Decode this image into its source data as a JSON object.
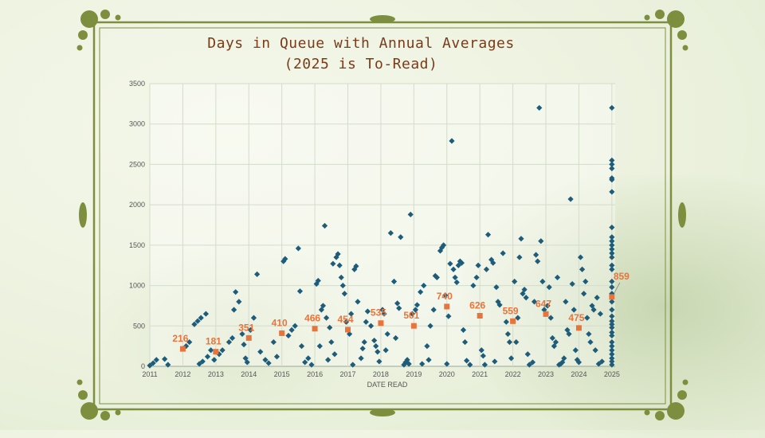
{
  "chart_data": {
    "type": "scatter",
    "title": "Days in Queue with Annual Averages",
    "subtitle": "(2025 is To-Read)",
    "xlabel": "DATE READ",
    "ylabel": "",
    "ylim": [
      0,
      3500
    ],
    "xlim": [
      2011,
      2025.1
    ],
    "yticks": [
      0,
      500,
      1000,
      1500,
      2000,
      2500,
      3000,
      3500
    ],
    "xticks": [
      2011,
      2012,
      2013,
      2014,
      2015,
      2016,
      2017,
      2018,
      2019,
      2020,
      2021,
      2022,
      2023,
      2024,
      2025
    ],
    "grid": true,
    "colors": {
      "points": "#1d5c7a",
      "averages": "#e8743b",
      "frame": "#7d8f3e",
      "title": "#7a3b18"
    },
    "series": [
      {
        "name": "",
        "marker": "diamond",
        "points": [
          [
            2011.0,
            10
          ],
          [
            2011.1,
            40
          ],
          [
            2011.2,
            80
          ],
          [
            2011.45,
            90
          ],
          [
            2011.55,
            20
          ],
          [
            2012.1,
            250
          ],
          [
            2012.2,
            300
          ],
          [
            2012.35,
            520
          ],
          [
            2012.45,
            560
          ],
          [
            2012.55,
            600
          ],
          [
            2012.7,
            650
          ],
          [
            2012.5,
            30
          ],
          [
            2012.6,
            60
          ],
          [
            2012.75,
            120
          ],
          [
            2012.85,
            200
          ],
          [
            2012.95,
            80
          ],
          [
            2013.1,
            150
          ],
          [
            2013.2,
            200
          ],
          [
            2013.4,
            300
          ],
          [
            2013.5,
            350
          ],
          [
            2013.55,
            700
          ],
          [
            2013.6,
            920
          ],
          [
            2013.7,
            800
          ],
          [
            2013.8,
            400
          ],
          [
            2013.85,
            270
          ],
          [
            2013.9,
            100
          ],
          [
            2013.95,
            50
          ],
          [
            2014.05,
            450
          ],
          [
            2014.15,
            600
          ],
          [
            2014.25,
            1140
          ],
          [
            2014.35,
            180
          ],
          [
            2014.5,
            80
          ],
          [
            2014.6,
            40
          ],
          [
            2014.75,
            300
          ],
          [
            2014.85,
            120
          ],
          [
            2015.05,
            1300
          ],
          [
            2015.1,
            1330
          ],
          [
            2015.2,
            380
          ],
          [
            2015.3,
            450
          ],
          [
            2015.4,
            500
          ],
          [
            2015.5,
            1460
          ],
          [
            2015.55,
            930
          ],
          [
            2015.6,
            250
          ],
          [
            2015.7,
            50
          ],
          [
            2015.8,
            100
          ],
          [
            2015.9,
            20
          ],
          [
            2016.05,
            1020
          ],
          [
            2016.1,
            1060
          ],
          [
            2016.2,
            700
          ],
          [
            2016.25,
            750
          ],
          [
            2016.3,
            1740
          ],
          [
            2016.35,
            600
          ],
          [
            2016.45,
            480
          ],
          [
            2016.5,
            300
          ],
          [
            2016.55,
            1270
          ],
          [
            2016.65,
            1350
          ],
          [
            2016.7,
            1390
          ],
          [
            2016.75,
            1250
          ],
          [
            2016.8,
            1100
          ],
          [
            2016.85,
            1000
          ],
          [
            2016.9,
            900
          ],
          [
            2016.95,
            550
          ],
          [
            2016.15,
            250
          ],
          [
            2016.4,
            80
          ],
          [
            2016.6,
            150
          ],
          [
            2017.05,
            400
          ],
          [
            2017.1,
            650
          ],
          [
            2017.2,
            1200
          ],
          [
            2017.25,
            1240
          ],
          [
            2017.3,
            800
          ],
          [
            2017.4,
            100
          ],
          [
            2017.5,
            300
          ],
          [
            2017.55,
            550
          ],
          [
            2017.6,
            680
          ],
          [
            2017.7,
            500
          ],
          [
            2017.8,
            320
          ],
          [
            2017.85,
            250
          ],
          [
            2017.9,
            180
          ],
          [
            2017.95,
            60
          ],
          [
            2017.15,
            20
          ],
          [
            2017.45,
            220
          ],
          [
            2018.05,
            700
          ],
          [
            2018.1,
            650
          ],
          [
            2018.2,
            400
          ],
          [
            2018.3,
            1650
          ],
          [
            2018.4,
            1050
          ],
          [
            2018.5,
            780
          ],
          [
            2018.55,
            720
          ],
          [
            2018.6,
            1600
          ],
          [
            2018.7,
            20
          ],
          [
            2018.75,
            50
          ],
          [
            2018.8,
            80
          ],
          [
            2018.85,
            30
          ],
          [
            2018.9,
            1880
          ],
          [
            2018.95,
            650
          ],
          [
            2018.15,
            200
          ],
          [
            2018.45,
            350
          ],
          [
            2019.05,
            700
          ],
          [
            2019.1,
            760
          ],
          [
            2019.2,
            920
          ],
          [
            2019.3,
            1000
          ],
          [
            2019.4,
            250
          ],
          [
            2019.5,
            500
          ],
          [
            2019.6,
            700
          ],
          [
            2019.65,
            1120
          ],
          [
            2019.7,
            1100
          ],
          [
            2019.8,
            1430
          ],
          [
            2019.85,
            1470
          ],
          [
            2019.9,
            1500
          ],
          [
            2019.95,
            880
          ],
          [
            2019.25,
            30
          ],
          [
            2019.45,
            80
          ],
          [
            2020.05,
            620
          ],
          [
            2020.1,
            1270
          ],
          [
            2020.15,
            2790
          ],
          [
            2020.2,
            1200
          ],
          [
            2020.25,
            1100
          ],
          [
            2020.3,
            1040
          ],
          [
            2020.35,
            1250
          ],
          [
            2020.4,
            1300
          ],
          [
            2020.45,
            1280
          ],
          [
            2020.5,
            450
          ],
          [
            2020.6,
            70
          ],
          [
            2020.7,
            20
          ],
          [
            2020.8,
            1000
          ],
          [
            2020.9,
            1100
          ],
          [
            2020.95,
            1250
          ],
          [
            2020.0,
            30
          ],
          [
            2020.55,
            300
          ],
          [
            2021.05,
            200
          ],
          [
            2021.1,
            130
          ],
          [
            2021.2,
            1200
          ],
          [
            2021.25,
            1630
          ],
          [
            2021.35,
            1320
          ],
          [
            2021.4,
            1280
          ],
          [
            2021.5,
            980
          ],
          [
            2021.55,
            800
          ],
          [
            2021.6,
            760
          ],
          [
            2021.7,
            1400
          ],
          [
            2021.8,
            550
          ],
          [
            2021.85,
            400
          ],
          [
            2021.9,
            300
          ],
          [
            2021.95,
            100
          ],
          [
            2021.15,
            20
          ],
          [
            2021.45,
            60
          ],
          [
            2022.05,
            1050
          ],
          [
            2022.1,
            300
          ],
          [
            2022.2,
            1350
          ],
          [
            2022.25,
            1580
          ],
          [
            2022.3,
            900
          ],
          [
            2022.35,
            950
          ],
          [
            2022.4,
            850
          ],
          [
            2022.5,
            20
          ],
          [
            2022.6,
            50
          ],
          [
            2022.65,
            800
          ],
          [
            2022.7,
            1380
          ],
          [
            2022.75,
            1300
          ],
          [
            2022.8,
            3200
          ],
          [
            2022.85,
            1550
          ],
          [
            2022.9,
            1050
          ],
          [
            2022.95,
            700
          ],
          [
            2022.15,
            600
          ],
          [
            2022.45,
            150
          ],
          [
            2023.05,
            750
          ],
          [
            2023.1,
            980
          ],
          [
            2023.15,
            600
          ],
          [
            2023.2,
            350
          ],
          [
            2023.25,
            250
          ],
          [
            2023.3,
            300
          ],
          [
            2023.35,
            1100
          ],
          [
            2023.4,
            20
          ],
          [
            2023.5,
            50
          ],
          [
            2023.55,
            100
          ],
          [
            2023.6,
            800
          ],
          [
            2023.65,
            450
          ],
          [
            2023.7,
            400
          ],
          [
            2023.75,
            2070
          ],
          [
            2023.8,
            1020
          ],
          [
            2023.85,
            700
          ],
          [
            2023.9,
            200
          ],
          [
            2023.95,
            80
          ],
          [
            2023.45,
            30
          ],
          [
            2024.05,
            1350
          ],
          [
            2024.1,
            1200
          ],
          [
            2024.15,
            900
          ],
          [
            2024.2,
            1050
          ],
          [
            2024.25,
            600
          ],
          [
            2024.3,
            400
          ],
          [
            2024.35,
            300
          ],
          [
            2024.4,
            750
          ],
          [
            2024.45,
            700
          ],
          [
            2024.5,
            200
          ],
          [
            2024.55,
            850
          ],
          [
            2024.6,
            30
          ],
          [
            2024.65,
            650
          ],
          [
            2024.7,
            60
          ],
          [
            2024.0,
            50
          ],
          [
            2025.0,
            3200
          ],
          [
            2025.0,
            2550
          ],
          [
            2025.0,
            2500
          ],
          [
            2025.0,
            2450
          ],
          [
            2025.0,
            2330
          ],
          [
            2025.0,
            2310
          ],
          [
            2025.0,
            2160
          ],
          [
            2025.0,
            1720
          ],
          [
            2025.0,
            1600
          ],
          [
            2025.0,
            1550
          ],
          [
            2025.0,
            1500
          ],
          [
            2025.0,
            1450
          ],
          [
            2025.0,
            1400
          ],
          [
            2025.0,
            1350
          ],
          [
            2025.0,
            1250
          ],
          [
            2025.0,
            1200
          ],
          [
            2025.0,
            1050
          ],
          [
            2025.0,
            980
          ],
          [
            2025.0,
            900
          ],
          [
            2025.0,
            800
          ],
          [
            2025.0,
            700
          ],
          [
            2025.0,
            620
          ],
          [
            2025.0,
            560
          ],
          [
            2025.0,
            520
          ],
          [
            2025.0,
            480
          ],
          [
            2025.0,
            420
          ],
          [
            2025.0,
            380
          ],
          [
            2025.0,
            300
          ],
          [
            2025.0,
            250
          ],
          [
            2025.0,
            200
          ],
          [
            2025.0,
            150
          ],
          [
            2025.0,
            100
          ],
          [
            2025.0,
            60
          ],
          [
            2025.0,
            20
          ]
        ]
      },
      {
        "name": "",
        "marker": "square",
        "points": [
          [
            2012,
            216
          ],
          [
            2013,
            181
          ],
          [
            2014,
            351
          ],
          [
            2015,
            410
          ],
          [
            2016,
            466
          ],
          [
            2017,
            454
          ],
          [
            2018,
            535
          ],
          [
            2019,
            501
          ],
          [
            2020,
            740
          ],
          [
            2021,
            626
          ],
          [
            2022,
            559
          ],
          [
            2023,
            647
          ],
          [
            2024,
            475
          ],
          [
            2025,
            859
          ]
        ],
        "labels": [
          "216",
          "181",
          "351",
          "410",
          "466",
          "454",
          "535",
          "501",
          "740",
          "626",
          "559",
          "647",
          "475",
          "859"
        ]
      }
    ]
  }
}
